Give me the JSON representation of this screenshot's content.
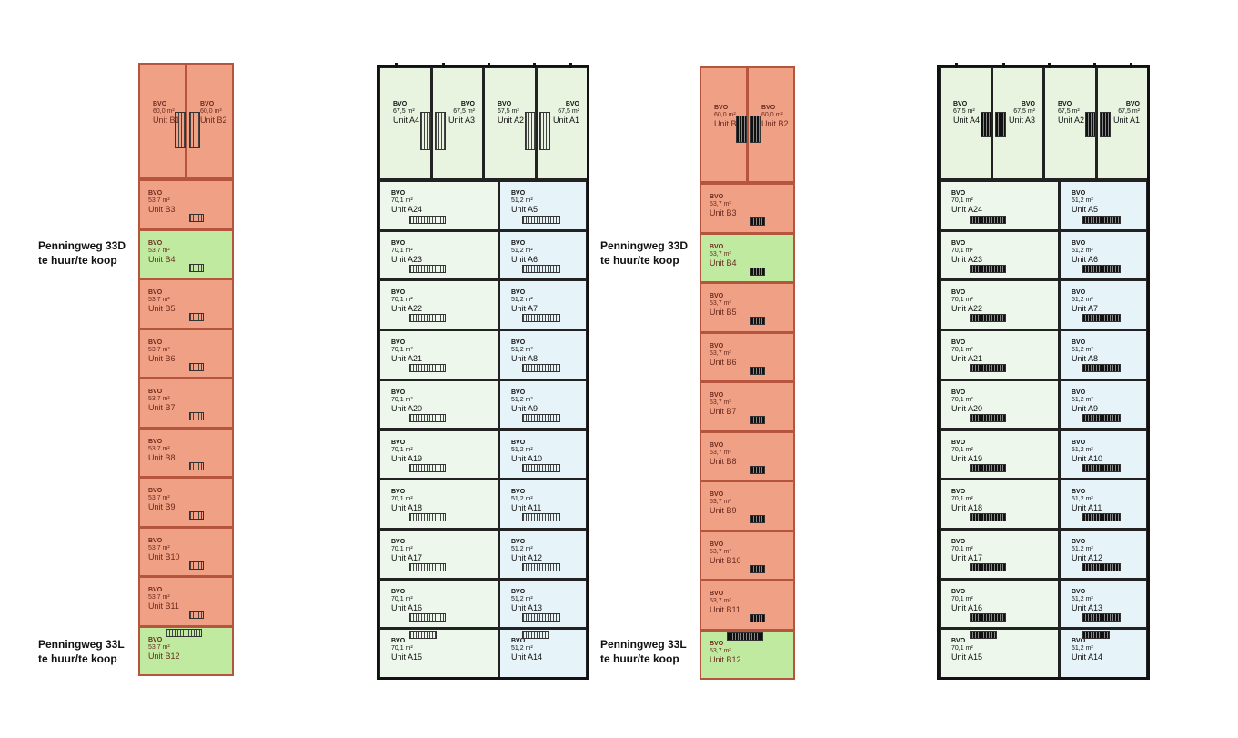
{
  "labels": {
    "b4_line1": "Penningweg 33D",
    "b4_line2": "te huur/te koop",
    "b12_line1": "Penningweg 33L",
    "b12_line2": "te huur/te koop"
  },
  "bvo": "BVO",
  "b_units": [
    {
      "name": "Unit B1",
      "area": "60,0 m²"
    },
    {
      "name": "Unit B2",
      "area": "60,0 m²"
    },
    {
      "name": "Unit B3",
      "area": "53,7 m²"
    },
    {
      "name": "Unit B4",
      "area": "53,7 m²"
    },
    {
      "name": "Unit B5",
      "area": "53,7 m²"
    },
    {
      "name": "Unit B6",
      "area": "53,7 m²"
    },
    {
      "name": "Unit B7",
      "area": "53,7 m²"
    },
    {
      "name": "Unit B8",
      "area": "53,7 m²"
    },
    {
      "name": "Unit B9",
      "area": "53,7 m²"
    },
    {
      "name": "Unit B10",
      "area": "53,7 m²"
    },
    {
      "name": "Unit B11",
      "area": "53,7 m²"
    },
    {
      "name": "Unit B12",
      "area": "53,7 m²"
    }
  ],
  "a_top": [
    {
      "name": "Unit A4",
      "area": "67,5 m²"
    },
    {
      "name": "Unit A3",
      "area": "67,5 m²"
    },
    {
      "name": "Unit A2",
      "area": "67,5 m²"
    },
    {
      "name": "Unit A1",
      "area": "67,5 m²"
    }
  ],
  "a_left": [
    {
      "name": "Unit A24",
      "area": "70,1 m²"
    },
    {
      "name": "Unit A23",
      "area": "70,1 m²"
    },
    {
      "name": "Unit A22",
      "area": "70,1 m²"
    },
    {
      "name": "Unit A21",
      "area": "70,1 m²"
    },
    {
      "name": "Unit A20",
      "area": "70,1 m²"
    },
    {
      "name": "Unit A19",
      "area": "70,1 m²"
    },
    {
      "name": "Unit A18",
      "area": "70,1 m²"
    },
    {
      "name": "Unit A17",
      "area": "70,1 m²"
    },
    {
      "name": "Unit A16",
      "area": "70,1 m²"
    },
    {
      "name": "Unit A15",
      "area": "70,1 m²"
    }
  ],
  "a_right": [
    {
      "name": "Unit A5",
      "area": "51,2 m²"
    },
    {
      "name": "Unit A6",
      "area": "51,2 m²"
    },
    {
      "name": "Unit A7",
      "area": "51,2 m²"
    },
    {
      "name": "Unit A8",
      "area": "51,2 m²"
    },
    {
      "name": "Unit A9",
      "area": "51,2 m²"
    },
    {
      "name": "Unit A10",
      "area": "51,2 m²"
    },
    {
      "name": "Unit A11",
      "area": "51,2 m²"
    },
    {
      "name": "Unit A12",
      "area": "51,2 m²"
    },
    {
      "name": "Unit A13",
      "area": "51,2 m²"
    },
    {
      "name": "Unit A14",
      "area": "51,2 m²"
    }
  ],
  "colors": {
    "sold": "#f0a084",
    "available": "#bfeaa0",
    "a_top": "#e8f4e0",
    "a_left": "#edf7ec",
    "a_right": "#e6f3f8"
  }
}
